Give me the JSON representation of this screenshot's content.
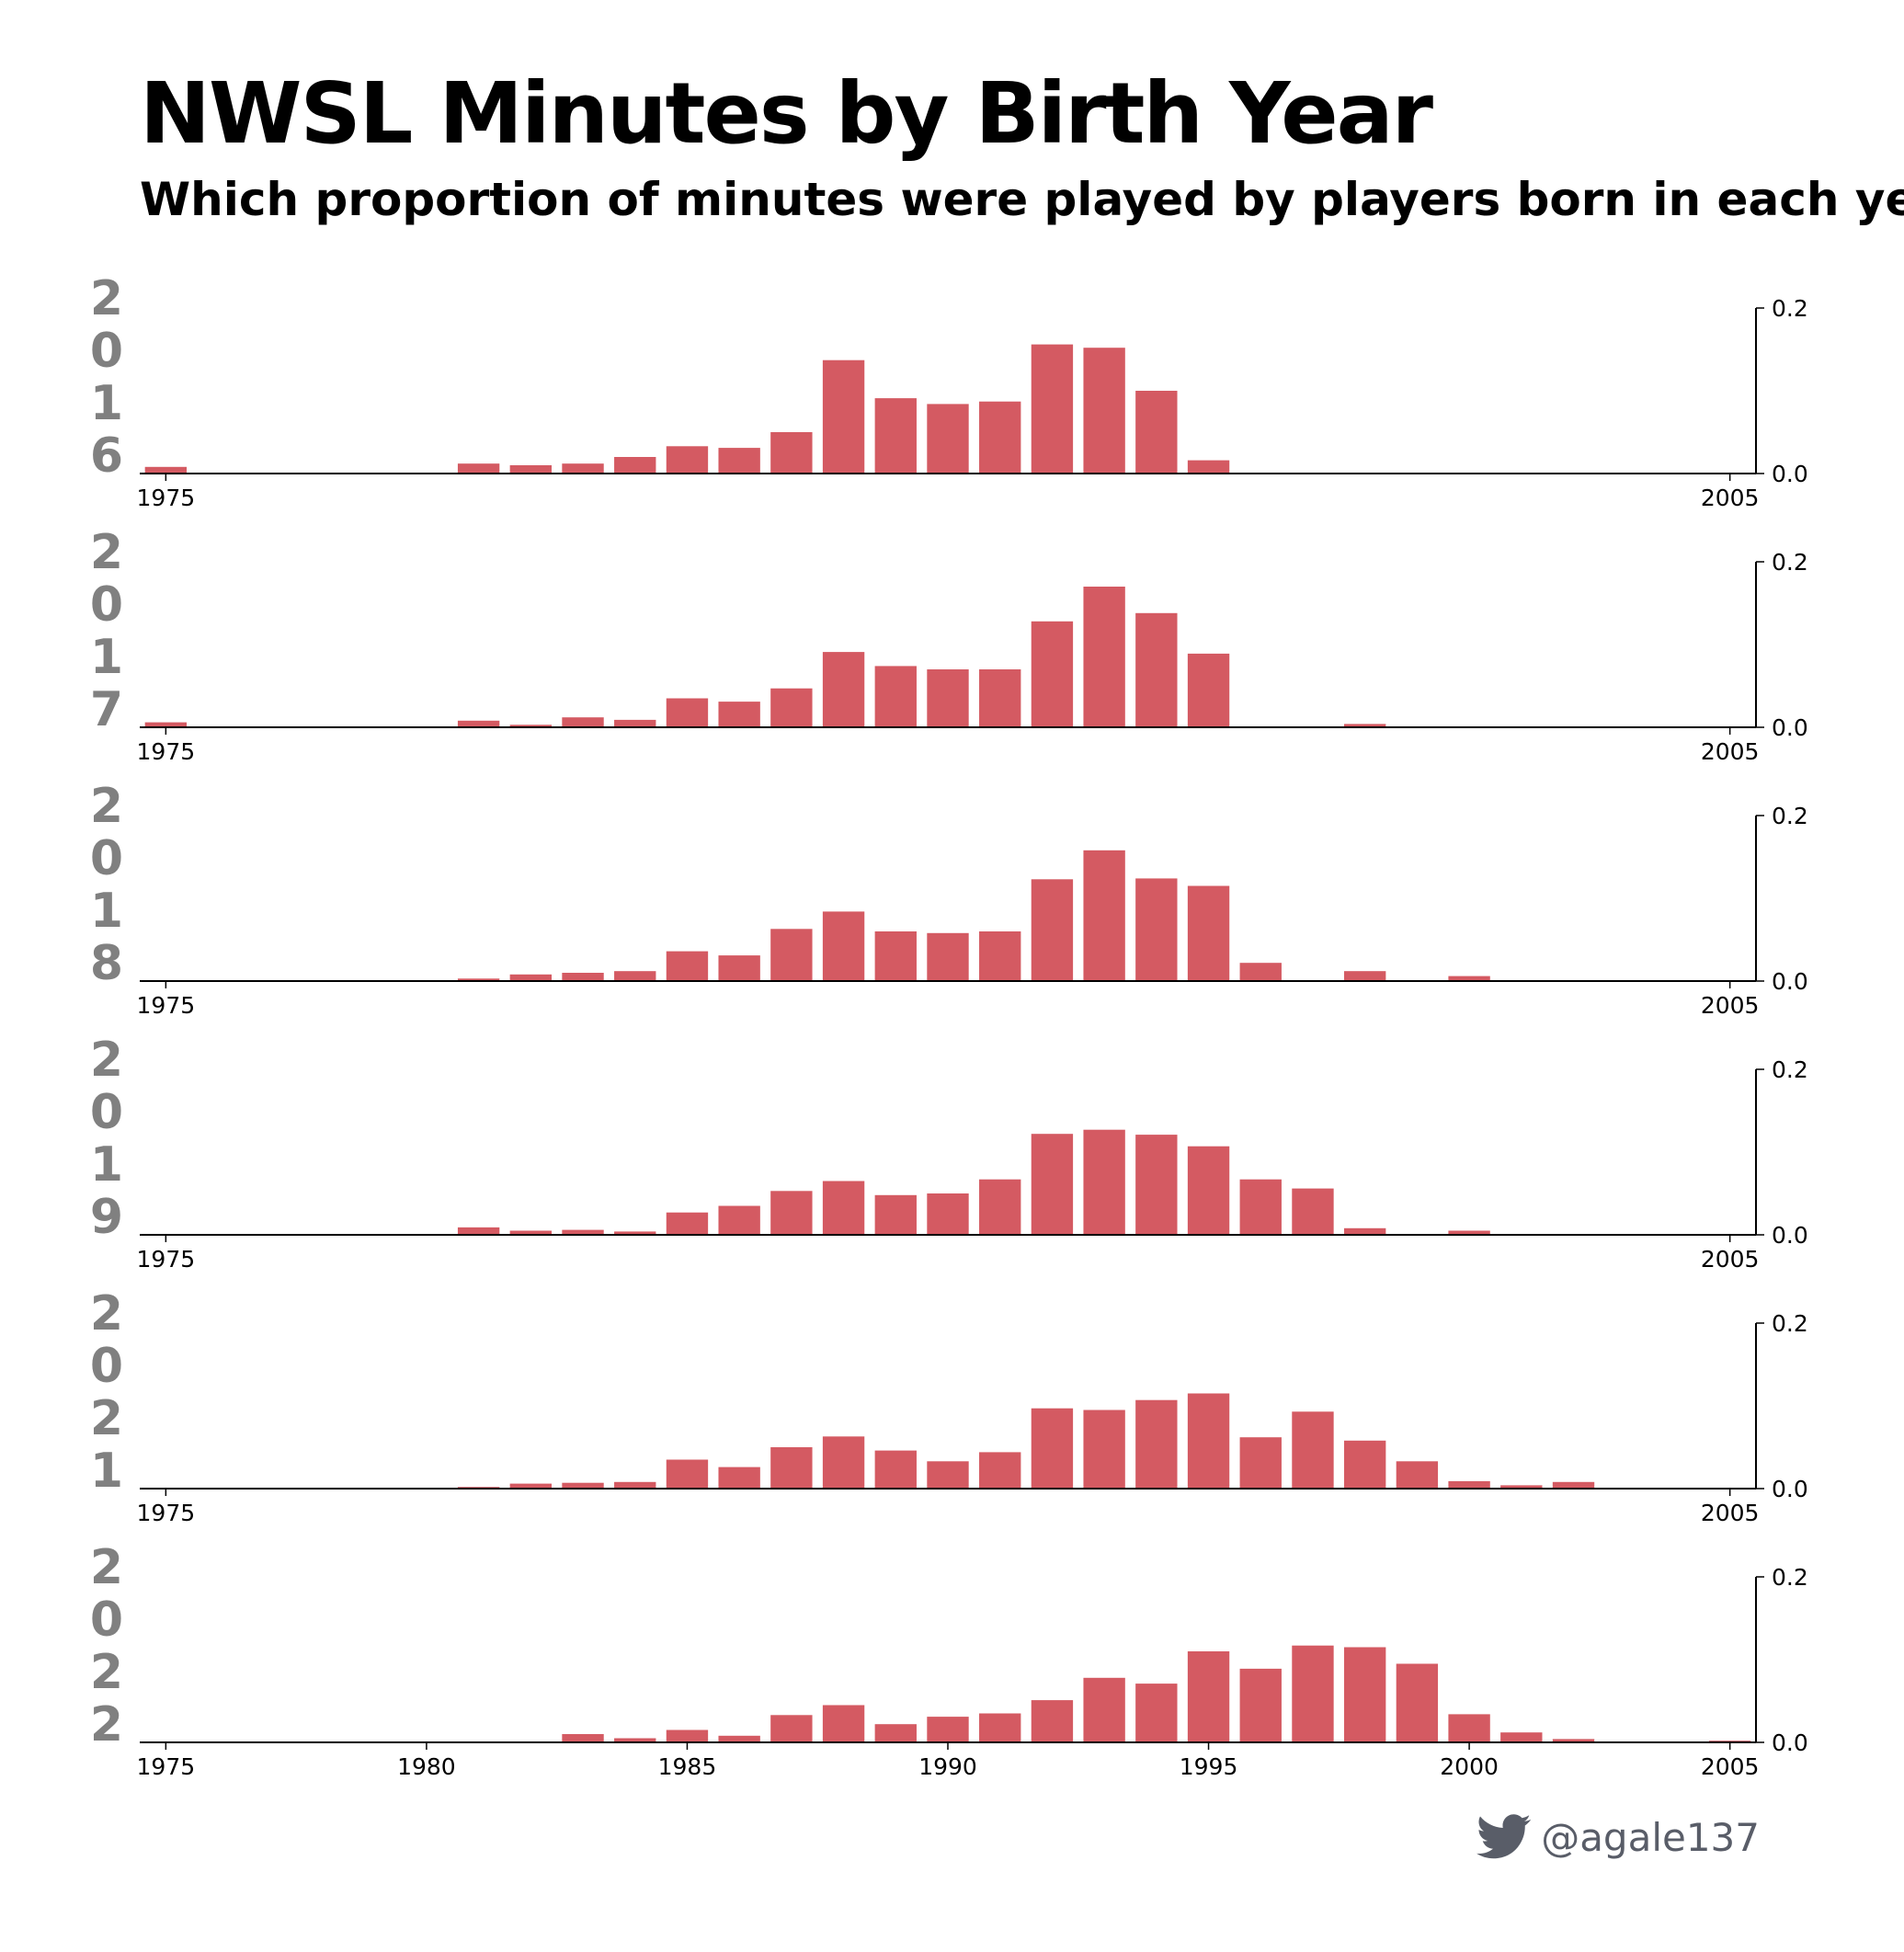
{
  "title": "NWSL Minutes by Birth Year",
  "subtitle": "Which proportion of minutes were played by players born in each year?",
  "credit": {
    "handle": "@agale137",
    "icon": "twitter-bird-icon"
  },
  "colors": {
    "bar": "#d45a62",
    "year_label": "#808080",
    "axis": "#000000",
    "credit": "#595d68"
  },
  "chart_data": [
    {
      "type": "bar",
      "panel_label": "2016",
      "xlim": [
        1974.5,
        2005.5
      ],
      "ylim": [
        0,
        0.2
      ],
      "xticks": [
        1975,
        2005
      ],
      "yticks": [
        0.0,
        0.2
      ],
      "x": [
        1975,
        1981,
        1982,
        1983,
        1984,
        1985,
        1986,
        1987,
        1988,
        1989,
        1990,
        1991,
        1992,
        1993,
        1994,
        1995
      ],
      "values": [
        0.008,
        0.012,
        0.01,
        0.012,
        0.02,
        0.033,
        0.031,
        0.05,
        0.137,
        0.091,
        0.084,
        0.087,
        0.156,
        0.152,
        0.1,
        0.016
      ]
    },
    {
      "type": "bar",
      "panel_label": "2017",
      "xlim": [
        1974.5,
        2005.5
      ],
      "ylim": [
        0,
        0.2
      ],
      "xticks": [
        1975,
        2005
      ],
      "yticks": [
        0.0,
        0.2
      ],
      "x": [
        1975,
        1981,
        1982,
        1983,
        1984,
        1985,
        1986,
        1987,
        1988,
        1989,
        1990,
        1991,
        1992,
        1993,
        1994,
        1995,
        1998
      ],
      "values": [
        0.006,
        0.008,
        0.003,
        0.012,
        0.009,
        0.035,
        0.031,
        0.047,
        0.091,
        0.074,
        0.07,
        0.07,
        0.128,
        0.17,
        0.138,
        0.089,
        0.004
      ]
    },
    {
      "type": "bar",
      "panel_label": "2018",
      "xlim": [
        1974.5,
        2005.5
      ],
      "ylim": [
        0,
        0.2
      ],
      "xticks": [
        1975,
        2005
      ],
      "yticks": [
        0.0,
        0.2
      ],
      "x": [
        1981,
        1982,
        1983,
        1984,
        1985,
        1986,
        1987,
        1988,
        1989,
        1990,
        1991,
        1992,
        1993,
        1994,
        1995,
        1996,
        1998,
        2000
      ],
      "values": [
        0.003,
        0.008,
        0.01,
        0.012,
        0.036,
        0.031,
        0.063,
        0.084,
        0.06,
        0.058,
        0.06,
        0.123,
        0.158,
        0.124,
        0.115,
        0.022,
        0.012,
        0.006
      ]
    },
    {
      "type": "bar",
      "panel_label": "2019",
      "xlim": [
        1974.5,
        2005.5
      ],
      "ylim": [
        0,
        0.2
      ],
      "xticks": [
        1975,
        2005
      ],
      "yticks": [
        0.0,
        0.2
      ],
      "x": [
        1981,
        1982,
        1983,
        1984,
        1985,
        1986,
        1987,
        1988,
        1989,
        1990,
        1991,
        1992,
        1993,
        1994,
        1995,
        1996,
        1997,
        1998,
        2000
      ],
      "values": [
        0.009,
        0.005,
        0.006,
        0.004,
        0.027,
        0.035,
        0.053,
        0.065,
        0.048,
        0.05,
        0.067,
        0.122,
        0.127,
        0.121,
        0.107,
        0.067,
        0.056,
        0.008,
        0.005
      ]
    },
    {
      "type": "bar",
      "panel_label": "2021",
      "xlim": [
        1974.5,
        2005.5
      ],
      "ylim": [
        0,
        0.2
      ],
      "xticks": [
        1975,
        2005
      ],
      "yticks": [
        0.0,
        0.2
      ],
      "x": [
        1981,
        1982,
        1983,
        1984,
        1985,
        1986,
        1987,
        1988,
        1989,
        1990,
        1991,
        1992,
        1993,
        1994,
        1995,
        1996,
        1997,
        1998,
        1999,
        2000,
        2001,
        2002,
        2005
      ],
      "values": [
        0.002,
        0.006,
        0.007,
        0.008,
        0.035,
        0.026,
        0.05,
        0.063,
        0.046,
        0.033,
        0.044,
        0.097,
        0.095,
        0.107,
        0.115,
        0.062,
        0.093,
        0.058,
        0.033,
        0.009,
        0.004,
        0.008,
        0.001
      ]
    },
    {
      "type": "bar",
      "panel_label": "2022",
      "xlim": [
        1974.5,
        2005.5
      ],
      "ylim": [
        0,
        0.2
      ],
      "xticks": [
        1975,
        1980,
        1985,
        1990,
        1995,
        2000,
        2005
      ],
      "yticks": [
        0.0,
        0.2
      ],
      "x": [
        1983,
        1984,
        1985,
        1986,
        1987,
        1988,
        1989,
        1990,
        1991,
        1992,
        1993,
        1994,
        1995,
        1996,
        1997,
        1998,
        1999,
        2000,
        2001,
        2002,
        2004,
        2005
      ],
      "values": [
        0.01,
        0.005,
        0.015,
        0.008,
        0.033,
        0.045,
        0.022,
        0.031,
        0.035,
        0.051,
        0.078,
        0.071,
        0.11,
        0.089,
        0.117,
        0.115,
        0.095,
        0.034,
        0.012,
        0.004,
        0.001,
        0.002
      ]
    }
  ]
}
